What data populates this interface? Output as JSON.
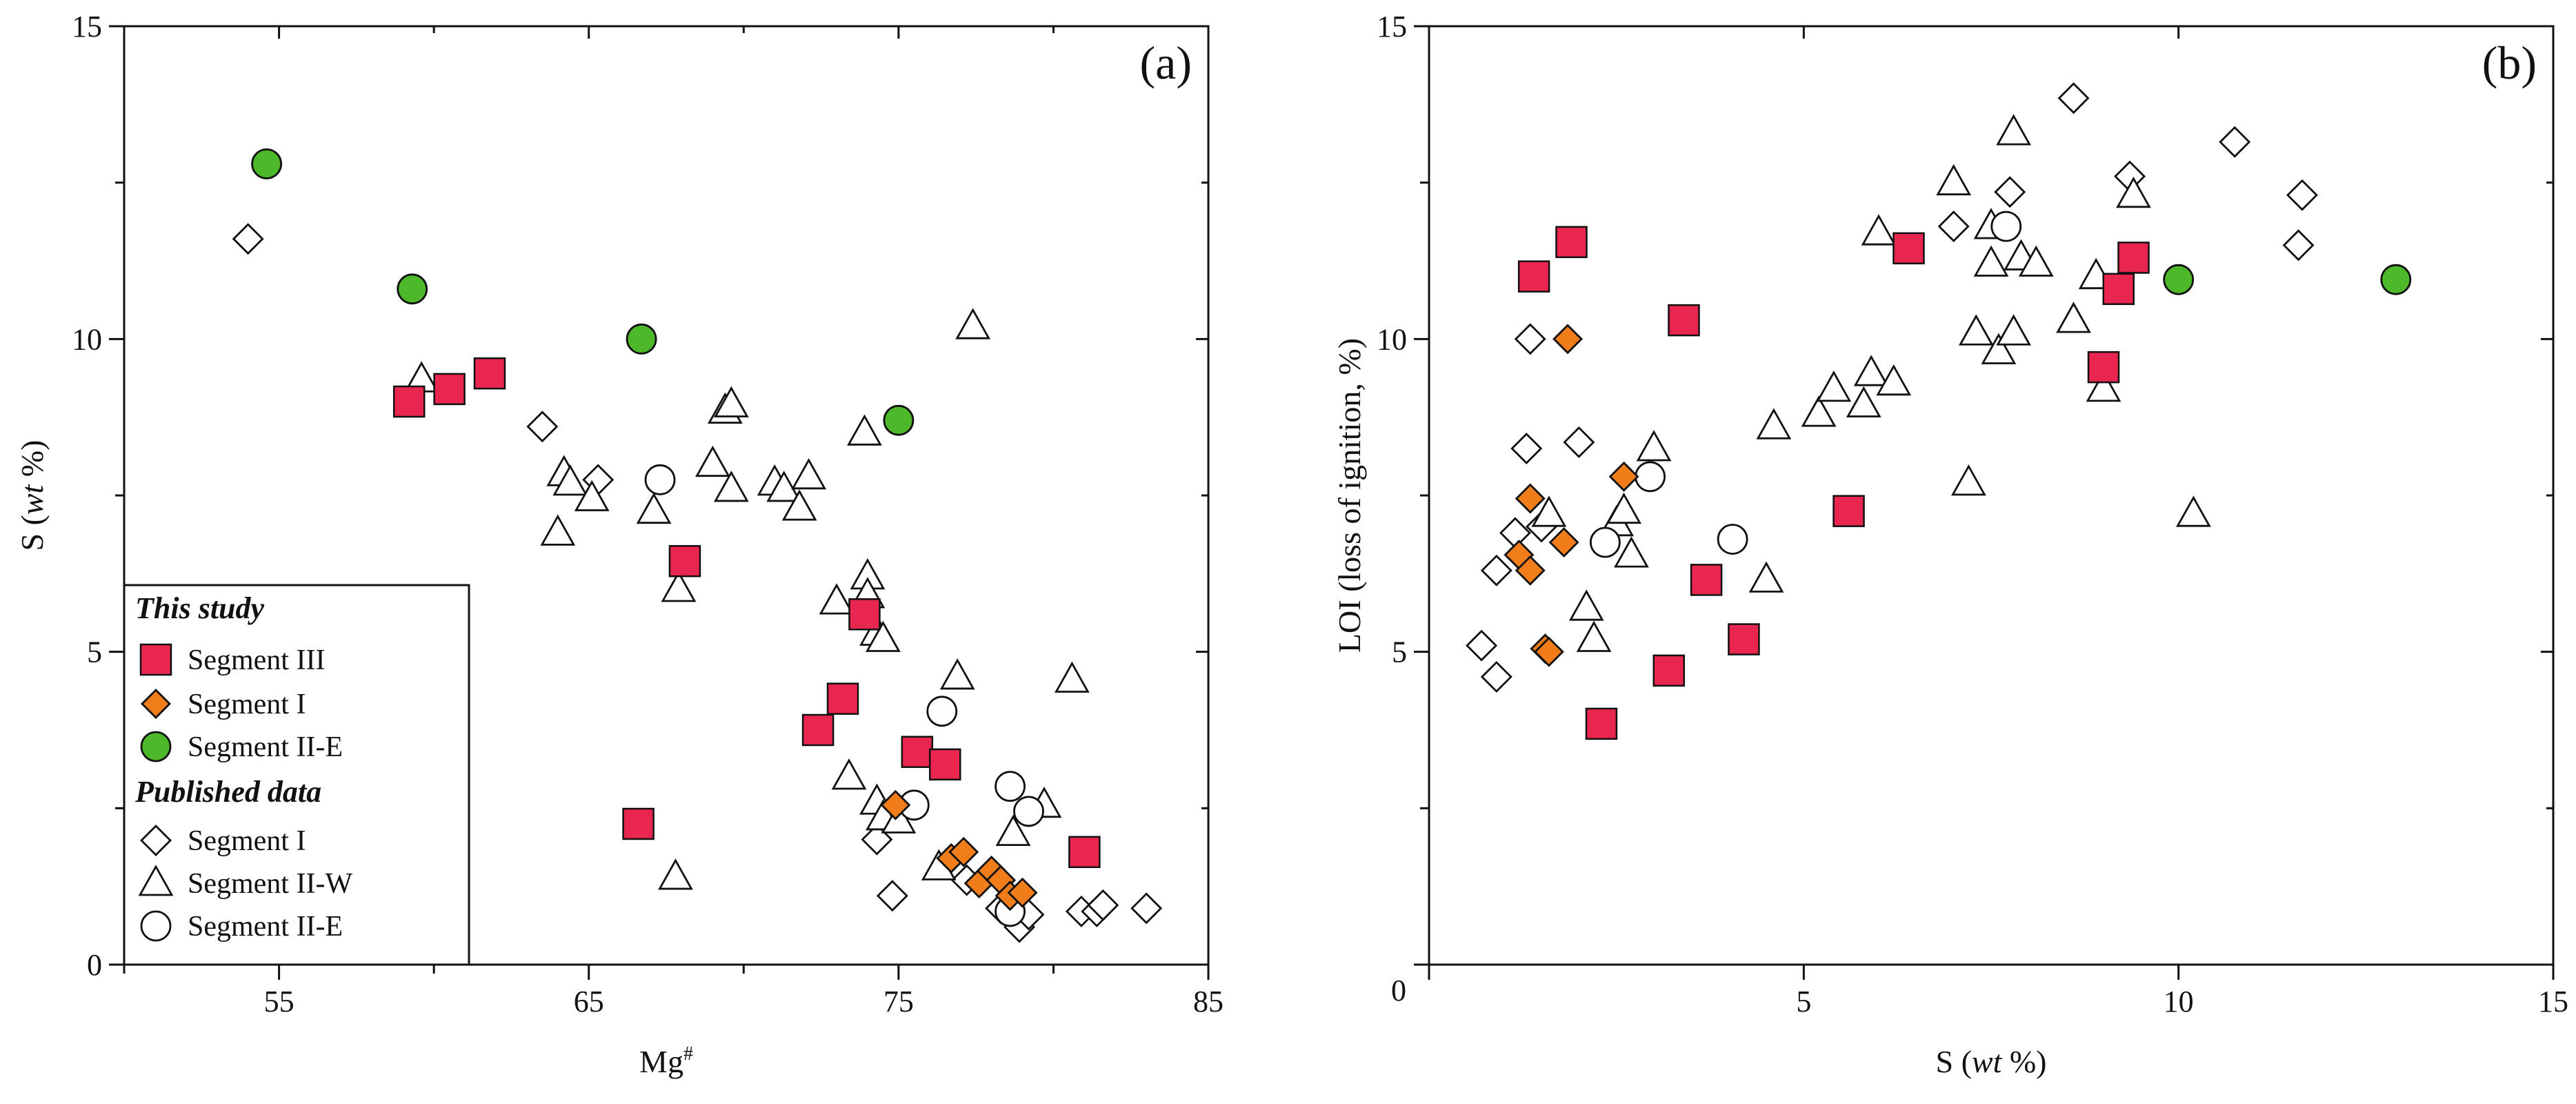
{
  "colors": {
    "segment_iii": "#e8264f",
    "segment_i": "#f07d1a",
    "segment_ii_e": "#4cb82a",
    "open": "#ffffff",
    "stroke": "#111111"
  },
  "chart_data": [
    {
      "type": "scatter",
      "panel_label": "(a)",
      "title": "",
      "xlabel_main": "Mg",
      "xlabel_sup": "#",
      "ylabel_main": "S (",
      "ylabel_ital": "wt",
      "ylabel_tail": " %)",
      "xlim": [
        50,
        85
      ],
      "ylim": [
        0,
        15
      ],
      "xticks": [
        55,
        65,
        75,
        85
      ],
      "xtick_labels": [
        "55",
        "65",
        "75",
        "85"
      ],
      "yticks": [
        0,
        5,
        10,
        15
      ],
      "ytick_labels": [
        "0",
        "5",
        "10",
        "15"
      ],
      "legend": {
        "placement": "bottom-left",
        "group1": "This study",
        "group2": "Published data",
        "items": [
          {
            "series": "this_iii",
            "label": "Segment III"
          },
          {
            "series": "this_i",
            "label": "Segment I"
          },
          {
            "series": "this_iie",
            "label": "Segment II-E"
          },
          {
            "series": "pub_i",
            "label": "Segment I"
          },
          {
            "series": "pub_iiw",
            "label": "Segment II-W"
          },
          {
            "series": "pub_iie",
            "label": "Segment II-E"
          }
        ]
      },
      "series": [
        {
          "name": "This study – Segment III",
          "id": "this_iii",
          "marker": "square",
          "points": [
            [
              59.2,
              9.0
            ],
            [
              60.5,
              9.2
            ],
            [
              61.8,
              9.45
            ],
            [
              68.1,
              6.45
            ],
            [
              73.9,
              5.6
            ],
            [
              73.2,
              4.25
            ],
            [
              72.4,
              3.75
            ],
            [
              75.6,
              3.4
            ],
            [
              76.5,
              3.2
            ],
            [
              66.6,
              2.25
            ],
            [
              81.0,
              1.8
            ]
          ]
        },
        {
          "name": "This study – Segment I",
          "id": "this_i",
          "marker": "diamond",
          "points": [
            [
              74.9,
              2.55
            ],
            [
              76.7,
              1.7
            ],
            [
              77.1,
              1.8
            ],
            [
              77.6,
              1.3
            ],
            [
              78.0,
              1.5
            ],
            [
              78.3,
              1.35
            ],
            [
              78.6,
              1.1
            ],
            [
              79.0,
              1.15
            ]
          ]
        },
        {
          "name": "This study – Segment II-E",
          "id": "this_iie",
          "marker": "circle",
          "points": [
            [
              54.6,
              12.8
            ],
            [
              59.3,
              10.8
            ],
            [
              66.7,
              10.0
            ],
            [
              75.0,
              8.7
            ]
          ]
        },
        {
          "name": "Published – Segment I",
          "id": "pub_i",
          "marker": "diamond",
          "points": [
            [
              54.0,
              11.6
            ],
            [
              63.5,
              8.6
            ],
            [
              65.3,
              7.75
            ],
            [
              74.3,
              2.0
            ],
            [
              74.8,
              1.1
            ],
            [
              77.2,
              1.35
            ],
            [
              78.3,
              0.9
            ],
            [
              78.9,
              0.6
            ],
            [
              79.2,
              0.8
            ],
            [
              80.9,
              0.85
            ],
            [
              81.4,
              0.85
            ],
            [
              81.6,
              0.95
            ],
            [
              83.0,
              0.9
            ]
          ]
        },
        {
          "name": "Published – Segment II-W",
          "id": "pub_iiw",
          "marker": "triangle",
          "points": [
            [
              59.6,
              9.35
            ],
            [
              64.2,
              7.85
            ],
            [
              64.4,
              7.7
            ],
            [
              65.1,
              7.45
            ],
            [
              64.0,
              6.9
            ],
            [
              67.1,
              7.25
            ],
            [
              67.9,
              6.0
            ],
            [
              69.0,
              8.0
            ],
            [
              69.4,
              8.85
            ],
            [
              69.6,
              8.95
            ],
            [
              69.6,
              7.6
            ],
            [
              71.0,
              7.7
            ],
            [
              71.3,
              7.6
            ],
            [
              72.1,
              7.8
            ],
            [
              71.8,
              7.3
            ],
            [
              73.0,
              5.8
            ],
            [
              73.9,
              8.5
            ],
            [
              74.0,
              6.2
            ],
            [
              74.0,
              5.9
            ],
            [
              74.3,
              5.3
            ],
            [
              74.5,
              5.2
            ],
            [
              73.4,
              3.0
            ],
            [
              74.3,
              2.6
            ],
            [
              74.5,
              2.35
            ],
            [
              75.0,
              2.3
            ],
            [
              76.9,
              4.6
            ],
            [
              77.4,
              10.2
            ],
            [
              76.3,
              1.55
            ],
            [
              78.7,
              2.1
            ],
            [
              79.7,
              2.55
            ],
            [
              80.6,
              4.55
            ],
            [
              67.8,
              1.4
            ]
          ]
        },
        {
          "name": "Published – Segment II-E",
          "id": "pub_iie",
          "marker": "circle",
          "points": [
            [
              67.3,
              7.75
            ],
            [
              76.4,
              4.05
            ],
            [
              75.5,
              2.55
            ],
            [
              78.6,
              2.85
            ],
            [
              79.2,
              2.45
            ],
            [
              78.6,
              0.85
            ]
          ]
        }
      ]
    },
    {
      "type": "scatter",
      "panel_label": "(b)",
      "title": "",
      "xlabel_main": "S (",
      "xlabel_ital": "wt",
      "xlabel_tail": " %)",
      "ylabel": "LOI (loss of ignition, %)",
      "xlim": [
        0,
        15
      ],
      "ylim": [
        0,
        15
      ],
      "xticks": [
        0,
        5,
        10,
        15
      ],
      "xtick_labels": [
        "0",
        "5",
        "10",
        "15"
      ],
      "yticks": [
        5,
        10,
        15
      ],
      "ytick_labels": [
        "5",
        "10",
        "15"
      ],
      "series": [
        {
          "name": "This study – Segment III",
          "id": "this_iii",
          "marker": "square",
          "points": [
            [
              1.4,
              11.0
            ],
            [
              1.9,
              11.55
            ],
            [
              3.4,
              10.3
            ],
            [
              6.4,
              11.45
            ],
            [
              9.0,
              9.55
            ],
            [
              9.2,
              10.8
            ],
            [
              9.4,
              11.3
            ],
            [
              5.6,
              7.25
            ],
            [
              3.7,
              6.15
            ],
            [
              4.2,
              5.2
            ],
            [
              3.2,
              4.7
            ],
            [
              2.3,
              3.85
            ]
          ]
        },
        {
          "name": "This study – Segment I",
          "id": "this_i",
          "marker": "diamond",
          "points": [
            [
              1.85,
              10.0
            ],
            [
              1.35,
              7.45
            ],
            [
              1.8,
              6.75
            ],
            [
              1.2,
              6.55
            ],
            [
              1.35,
              6.3
            ],
            [
              1.55,
              5.05
            ],
            [
              2.6,
              7.8
            ],
            [
              1.6,
              5.0
            ]
          ]
        },
        {
          "name": "This study – Segment II-E",
          "id": "this_iie",
          "marker": "circle",
          "points": [
            [
              10.0,
              10.95
            ],
            [
              12.9,
              10.95
            ]
          ]
        },
        {
          "name": "Published – Segment I",
          "id": "pub_i",
          "marker": "diamond",
          "points": [
            [
              1.35,
              10.0
            ],
            [
              1.3,
              8.25
            ],
            [
              2.0,
              8.35
            ],
            [
              1.15,
              6.9
            ],
            [
              1.5,
              7.0
            ],
            [
              0.9,
              6.3
            ],
            [
              0.7,
              5.1
            ],
            [
              0.9,
              4.6
            ],
            [
              7.0,
              11.8
            ],
            [
              7.75,
              12.35
            ],
            [
              8.6,
              13.85
            ],
            [
              9.35,
              12.6
            ],
            [
              10.75,
              13.15
            ],
            [
              11.65,
              12.3
            ],
            [
              11.6,
              11.5
            ]
          ]
        },
        {
          "name": "Published – Segment II-W",
          "id": "pub_iiw",
          "marker": "triangle",
          "points": [
            [
              1.6,
              7.2
            ],
            [
              2.1,
              5.7
            ],
            [
              2.2,
              5.2
            ],
            [
              2.5,
              7.05
            ],
            [
              2.6,
              7.25
            ],
            [
              2.7,
              6.55
            ],
            [
              3.0,
              8.25
            ],
            [
              4.5,
              6.15
            ],
            [
              4.6,
              8.6
            ],
            [
              5.2,
              8.8
            ],
            [
              5.4,
              9.2
            ],
            [
              5.8,
              8.95
            ],
            [
              5.9,
              9.45
            ],
            [
              6.2,
              9.3
            ],
            [
              6.0,
              11.7
            ],
            [
              7.0,
              12.5
            ],
            [
              7.2,
              7.7
            ],
            [
              7.3,
              10.1
            ],
            [
              7.5,
              11.2
            ],
            [
              7.5,
              11.8
            ],
            [
              7.6,
              9.8
            ],
            [
              7.8,
              10.1
            ],
            [
              7.8,
              13.3
            ],
            [
              7.9,
              11.3
            ],
            [
              8.1,
              11.2
            ],
            [
              8.6,
              10.3
            ],
            [
              8.9,
              11.0
            ],
            [
              9.0,
              9.2
            ],
            [
              9.4,
              12.3
            ],
            [
              10.2,
              7.2
            ]
          ]
        },
        {
          "name": "Published – Segment II-E",
          "id": "pub_iie",
          "marker": "circle",
          "points": [
            [
              2.35,
              6.75
            ],
            [
              2.95,
              7.8
            ],
            [
              4.05,
              6.8
            ],
            [
              7.7,
              11.8
            ]
          ]
        }
      ]
    }
  ]
}
